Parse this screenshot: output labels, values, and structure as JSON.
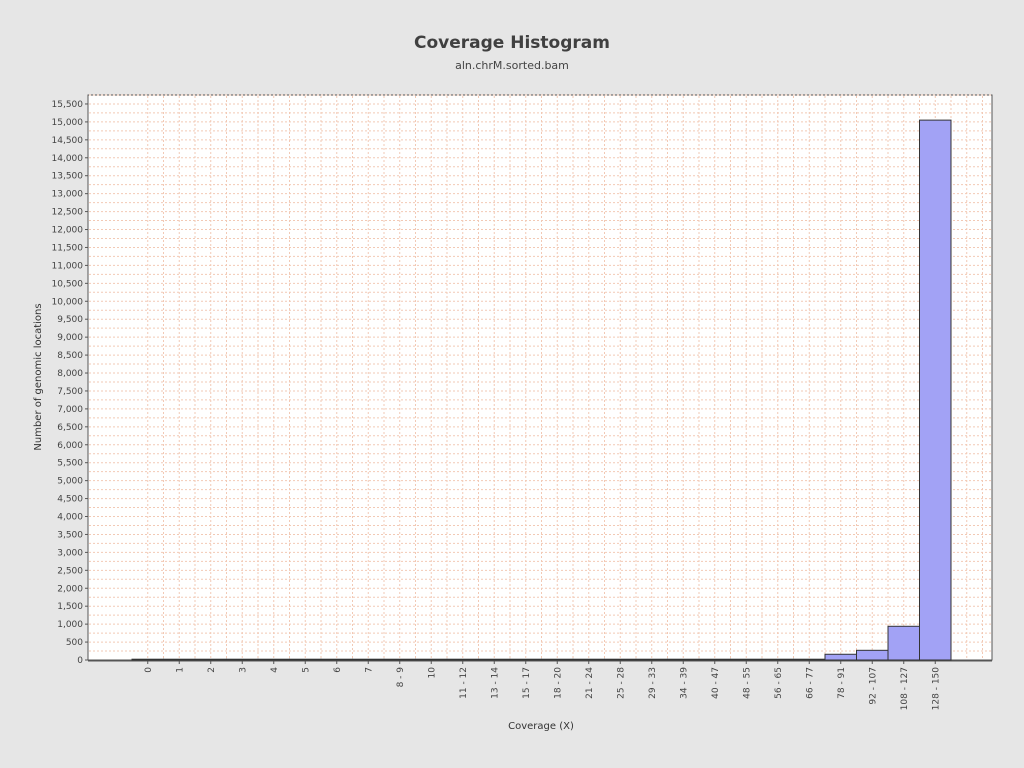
{
  "chart_data": {
    "type": "bar",
    "title": "Coverage Histogram",
    "subtitle": "aln.chrM.sorted.bam",
    "xlabel": "Coverage (X)",
    "ylabel": "Number of genomic locations",
    "ylim": [
      0,
      15750
    ],
    "ytick_step": 500,
    "grid": true,
    "categories": [
      "0",
      "1",
      "2",
      "3",
      "4",
      "5",
      "6",
      "7",
      "8 - 9",
      "10",
      "11 - 12",
      "13 - 14",
      "15 - 17",
      "18 - 20",
      "21 - 24",
      "25 - 28",
      "29 - 33",
      "34 - 39",
      "40 - 47",
      "48 - 55",
      "56 - 65",
      "66 - 77",
      "78 - 91",
      "92 - 107",
      "108 - 127",
      "128 - 150"
    ],
    "values": [
      0,
      0,
      0,
      0,
      0,
      0,
      0,
      0,
      0,
      0,
      0,
      0,
      20,
      20,
      20,
      20,
      20,
      20,
      20,
      20,
      20,
      20,
      160,
      270,
      940,
      15050
    ],
    "colors": {
      "background": "#e6e6e6",
      "plot_bg": "#ffffff",
      "grid": "#f2c9b5",
      "bar_fill": "#a2a2f5",
      "bar_stroke": "#333333",
      "axis": "#555555"
    }
  }
}
